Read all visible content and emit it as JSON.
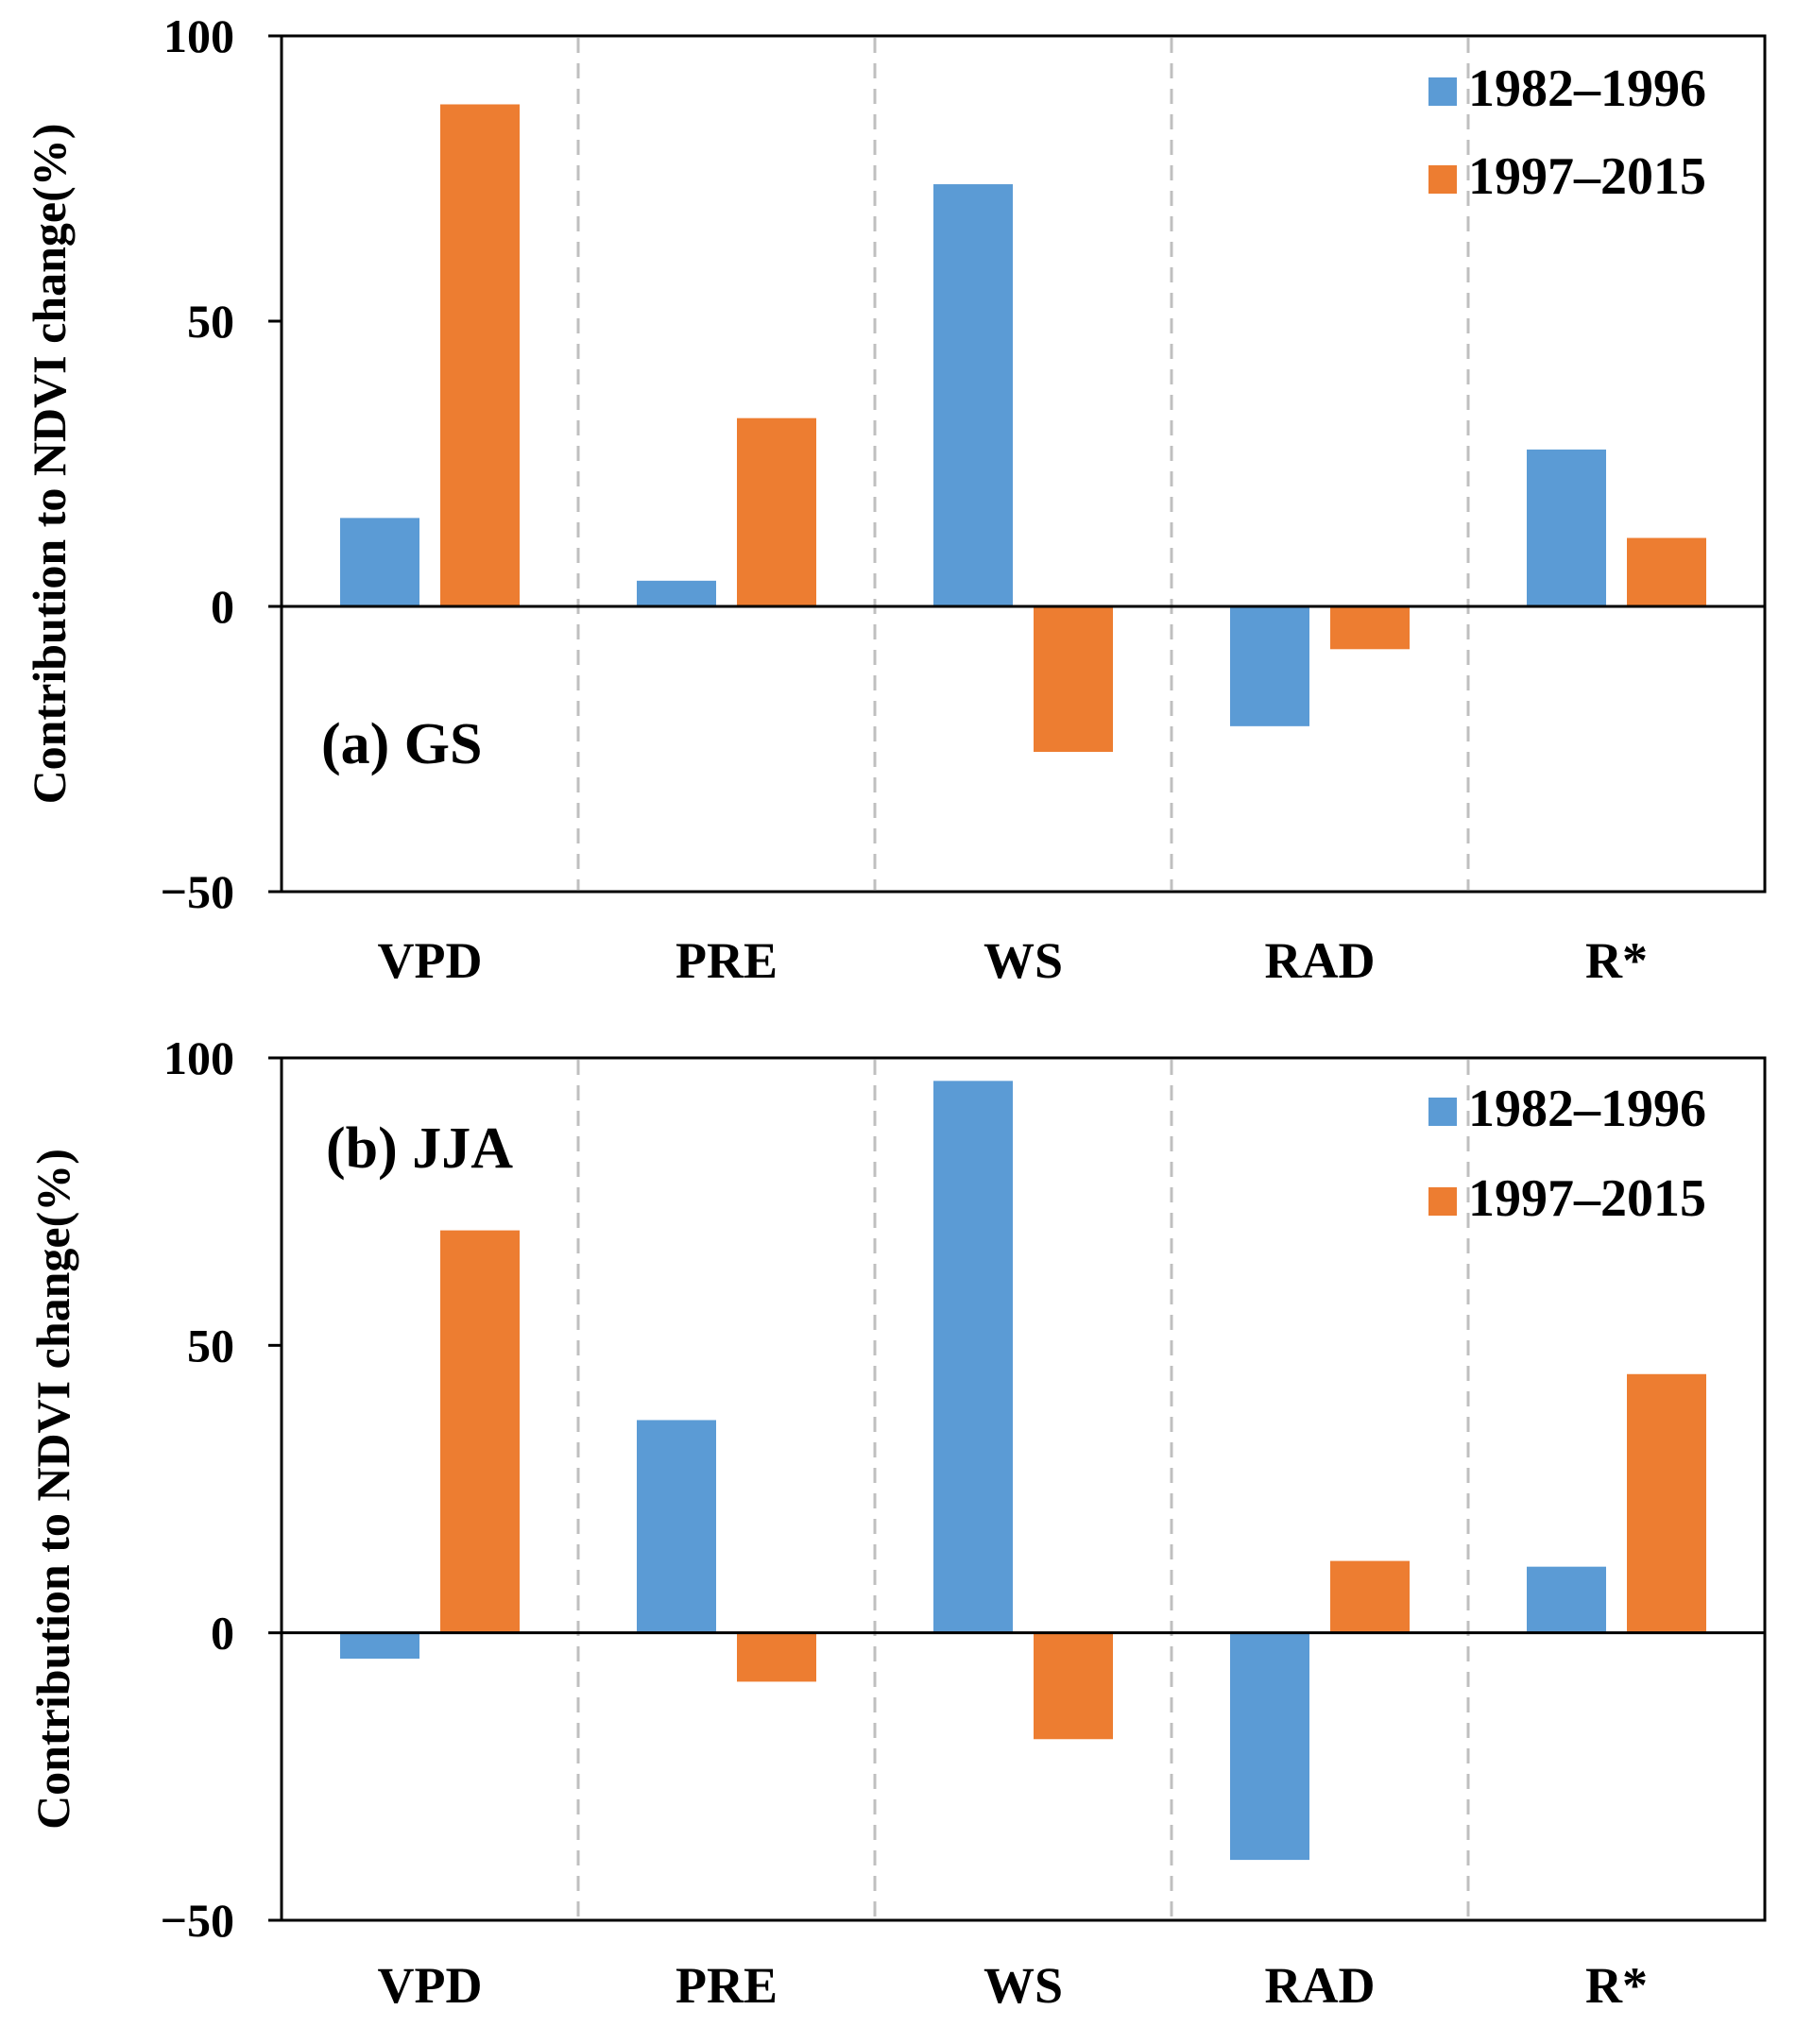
{
  "colors": {
    "series1": "#5b9bd5",
    "series2": "#ed7d31",
    "grid": "#bfbfbf",
    "axis": "#000000"
  },
  "chart_data": [
    {
      "type": "bar",
      "panel_label": "(a) GS",
      "categories": [
        "VPD",
        "PRE",
        "WS",
        "RAD",
        "R*"
      ],
      "series": [
        {
          "name": "1982–1996",
          "values": [
            15.5,
            4.5,
            74,
            -21,
            27.5
          ]
        },
        {
          "name": "1997–2015",
          "values": [
            88,
            33,
            -25.5,
            -7.5,
            12
          ]
        }
      ],
      "ylabel": "Contribution to NDVI change(%)",
      "ylim": [
        -50,
        100
      ],
      "yticks": [
        100,
        50,
        0,
        -50
      ],
      "ytick_labels": [
        "100",
        "50",
        "0",
        "−50"
      ],
      "vertical_separators": true,
      "legend": "top-right"
    },
    {
      "type": "bar",
      "panel_label": "(b) JJA",
      "categories": [
        "VPD",
        "PRE",
        "WS",
        "RAD",
        "R*"
      ],
      "series": [
        {
          "name": "1982–1996",
          "values": [
            -4.5,
            37,
            96,
            -39.5,
            11.5
          ]
        },
        {
          "name": "1997–2015",
          "values": [
            70,
            -8.5,
            -18.5,
            12.5,
            45
          ]
        }
      ],
      "ylabel": "Contribution to NDVI change(%)",
      "ylim": [
        -50,
        100
      ],
      "yticks": [
        100,
        50,
        0,
        -50
      ],
      "ytick_labels": [
        "100",
        "50",
        "0",
        "−50"
      ],
      "vertical_separators": true,
      "legend": "top-right"
    }
  ]
}
